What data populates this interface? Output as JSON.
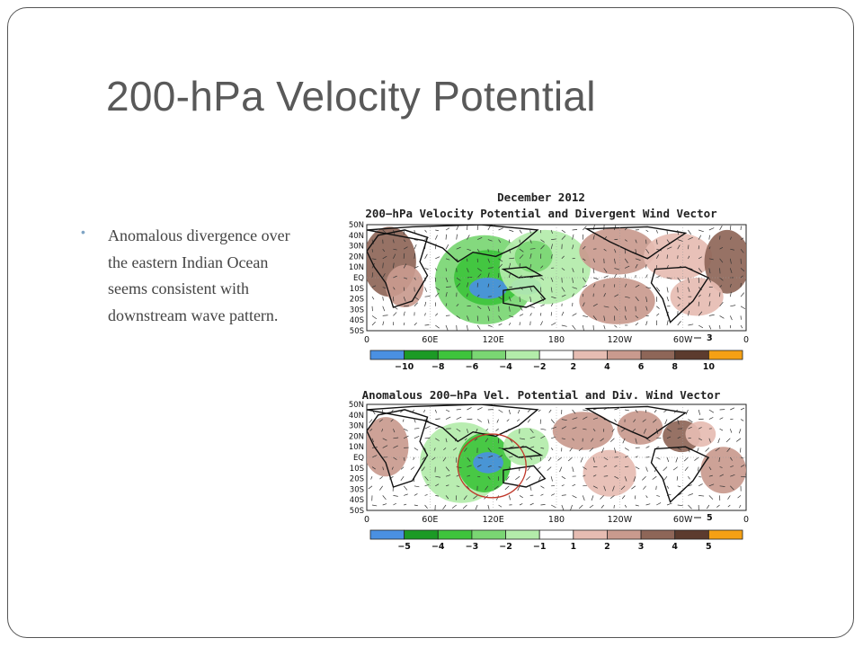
{
  "slide": {
    "title": "200-hPa Velocity Potential",
    "bullets": [
      "Anomalous divergence over the eastern Indian Ocean seems consistent with downstream wave pattern."
    ]
  },
  "maps": [
    {
      "title_line1": "December 2012",
      "title_line2": "200−hPa Velocity Potential and Divergent Wind Vector",
      "vector_scale_label": "3",
      "lat_labels": [
        "50N",
        "40N",
        "30N",
        "20N",
        "10N",
        "EQ",
        "10S",
        "20S",
        "30S",
        "40S",
        "50S"
      ],
      "lon_labels": [
        "0",
        "60E",
        "120E",
        "180",
        "120W",
        "60W",
        "0"
      ],
      "colorbar_labels": [
        "−10",
        "−8",
        "−6",
        "−4",
        "−2",
        "2",
        "4",
        "6",
        "8",
        "10"
      ],
      "colorbar_colors": [
        "#4a90e2",
        "#1c9a25",
        "#3ec43c",
        "#7ad673",
        "#b3ecaa",
        "#ffffff",
        "#e6bcb2",
        "#c99a8e",
        "#8e6658",
        "#5c3b2e",
        "#f5a014"
      ]
    },
    {
      "title_line1": "",
      "title_line2": "Anomalous 200−hPa Vel. Potential and Div. Wind Vector",
      "vector_scale_label": "5",
      "lat_labels": [
        "50N",
        "40N",
        "30N",
        "20N",
        "10N",
        "EQ",
        "10S",
        "20S",
        "30S",
        "40S",
        "50S"
      ],
      "lon_labels": [
        "0",
        "60E",
        "120E",
        "180",
        "120W",
        "60W",
        "0"
      ],
      "colorbar_labels": [
        "−5",
        "−4",
        "−3",
        "−2",
        "−1",
        "1",
        "2",
        "3",
        "4",
        "5"
      ],
      "colorbar_colors": [
        "#4a90e2",
        "#1c9a25",
        "#3ec43c",
        "#7ad673",
        "#b3ecaa",
        "#ffffff",
        "#e6bcb2",
        "#c99a8e",
        "#8e6658",
        "#5c3b2e",
        "#f5a014"
      ]
    }
  ],
  "colors": {
    "title_gray": "#595959",
    "bullet_accent": "#7fa4c4",
    "frame": "#555555",
    "land_outline": "#111111",
    "analysis_circle": "#c0392b"
  }
}
